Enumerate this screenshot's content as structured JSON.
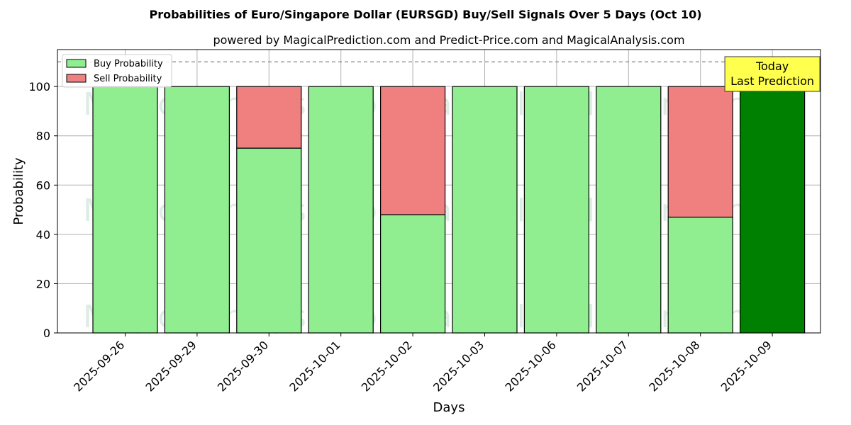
{
  "chart_data": {
    "type": "bar",
    "stacked": true,
    "title": "Probabilities of Euro/Singapore Dollar (EURSGD) Buy/Sell Signals Over 5 Days (Oct 10)",
    "subtitle": "powered by MagicalPrediction.com and Predict-Price.com and MagicalAnalysis.com",
    "xlabel": "Days",
    "ylabel": "Probability",
    "ylim": [
      0,
      115
    ],
    "yticks": [
      0,
      20,
      40,
      60,
      80,
      100
    ],
    "grid": true,
    "legend_position": "top-left",
    "categories": [
      "2025-09-26",
      "2025-09-29",
      "2025-09-30",
      "2025-10-01",
      "2025-10-02",
      "2025-10-03",
      "2025-10-06",
      "2025-10-07",
      "2025-10-08",
      "2025-10-09"
    ],
    "series": [
      {
        "name": "Buy Probability",
        "color": "#90ee90",
        "values": [
          100,
          100,
          75,
          100,
          48,
          100,
          100,
          100,
          47,
          100
        ]
      },
      {
        "name": "Sell Probability",
        "color": "#f08080",
        "values": [
          0,
          0,
          25,
          0,
          52,
          0,
          0,
          0,
          53,
          0
        ]
      }
    ],
    "highlight": {
      "index": 9,
      "color": "#008000"
    },
    "reference_line": {
      "y": 110,
      "style": "dashed",
      "color": "#808080"
    },
    "annotation": {
      "lines": [
        "Today",
        "Last Prediction"
      ],
      "background": "#ffff4d"
    },
    "watermarks": [
      "MagicalAnalysis.com",
      "MagicalPrediction.com"
    ]
  }
}
